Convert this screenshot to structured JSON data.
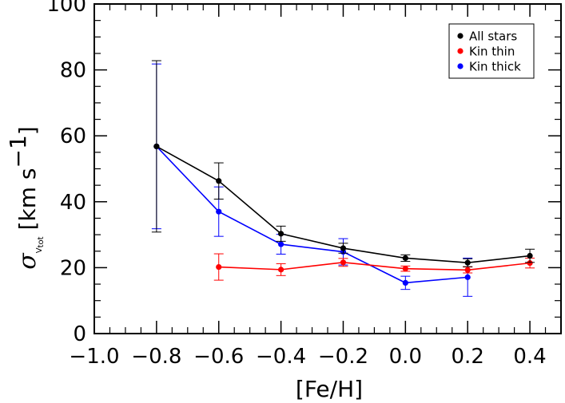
{
  "chart_data": {
    "type": "line",
    "title": "",
    "xlabel": "[Fe/H]",
    "ylabel_symbol": "σ",
    "ylabel_subscript": "V",
    "ylabel_subsubscript": "tot",
    "ylabel_units_prefix": "[km s",
    "ylabel_units_exponent": "−1",
    "ylabel_units_suffix": "]",
    "xlim": [
      -1.0,
      0.5
    ],
    "ylim": [
      0,
      100
    ],
    "xticks": [
      "−1.0",
      "−0.8",
      "−0.6",
      "−0.4",
      "−0.2",
      "0.0",
      "0.2",
      "0.4"
    ],
    "xtick_values": [
      -1.0,
      -0.8,
      -0.6,
      -0.4,
      -0.2,
      0.0,
      0.2,
      0.4
    ],
    "yticks": [
      "0",
      "20",
      "40",
      "60",
      "80",
      "100"
    ],
    "ytick_values": [
      0,
      20,
      40,
      60,
      80,
      100
    ],
    "grid": false,
    "legend_position": "top-right",
    "series": [
      {
        "name": "All stars",
        "color": "#000000",
        "x": [
          -0.8,
          -0.6,
          -0.4,
          -0.2,
          0.0,
          0.2,
          0.4
        ],
        "y": [
          56.8,
          46.3,
          30.3,
          25.9,
          22.9,
          21.5,
          23.6
        ],
        "err": [
          26.0,
          5.5,
          2.3,
          1.5,
          1.0,
          1.2,
          2.0
        ]
      },
      {
        "name": "Kin thin",
        "color": "#ff0000",
        "x": [
          -0.6,
          -0.4,
          -0.2,
          0.0,
          0.2,
          0.4
        ],
        "y": [
          20.2,
          19.4,
          21.6,
          19.7,
          19.3,
          21.4
        ],
        "err": [
          4.0,
          1.8,
          1.2,
          0.8,
          0.9,
          1.5
        ]
      },
      {
        "name": "Kin thick",
        "color": "#0000ff",
        "x": [
          -0.8,
          -0.6,
          -0.4,
          -0.2,
          0.0,
          0.2
        ],
        "y": [
          56.8,
          37.0,
          27.1,
          24.8,
          15.4,
          17.1
        ],
        "err": [
          25.0,
          7.5,
          3.0,
          4.0,
          2.0,
          5.8
        ]
      }
    ]
  }
}
